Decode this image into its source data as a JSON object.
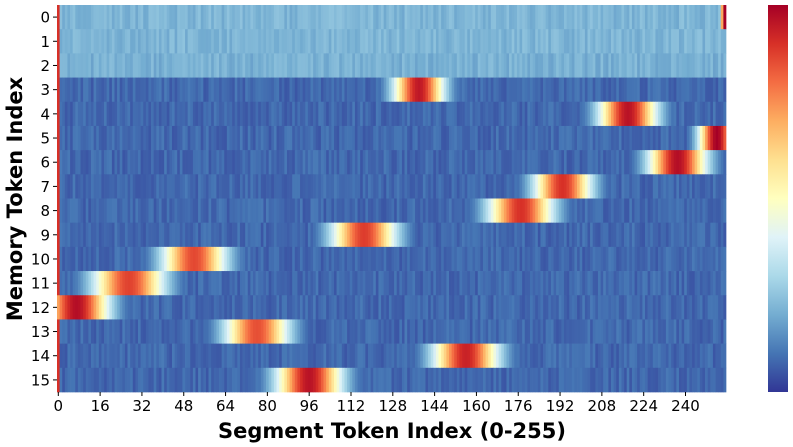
{
  "chart_data": {
    "type": "heatmap",
    "title": "",
    "xlabel": "Segment Token Index (0-255)",
    "ylabel": "Memory Token Index",
    "x_ticks": [
      "0",
      "16",
      "32",
      "48",
      "64",
      "80",
      "96",
      "112",
      "128",
      "144",
      "160",
      "176",
      "192",
      "208",
      "224",
      "240"
    ],
    "y_ticks": [
      "0",
      "1",
      "2",
      "3",
      "4",
      "5",
      "6",
      "7",
      "8",
      "9",
      "10",
      "11",
      "12",
      "13",
      "14",
      "15"
    ],
    "n_columns": 256,
    "colormap": "RdYlBu_r",
    "colorbar": true,
    "colorbar_tick_labels": false,
    "colors": {
      "low": "#313695",
      "mid": "#ffffbf",
      "high": "#a50026"
    },
    "rows": [
      {
        "row": 0,
        "background": 0.22,
        "peak_center": 255,
        "peak_width": 1.2,
        "peak_value": 1.0
      },
      {
        "row": 1,
        "background": 0.22,
        "peak_center": null,
        "peak_width": 0,
        "peak_value": 0
      },
      {
        "row": 2,
        "background": 0.21,
        "peak_center": null,
        "peak_width": 0,
        "peak_value": 0
      },
      {
        "row": 3,
        "background": 0.08,
        "peak_center": 138,
        "peak_width": 7,
        "peak_value": 0.95
      },
      {
        "row": 4,
        "background": 0.08,
        "peak_center": 218,
        "peak_width": 8,
        "peak_value": 0.96
      },
      {
        "row": 5,
        "background": 0.08,
        "peak_center": 252,
        "peak_width": 5,
        "peak_value": 1.0
      },
      {
        "row": 6,
        "background": 0.08,
        "peak_center": 237,
        "peak_width": 8,
        "peak_value": 0.97
      },
      {
        "row": 7,
        "background": 0.08,
        "peak_center": 193,
        "peak_width": 8,
        "peak_value": 0.9
      },
      {
        "row": 8,
        "background": 0.08,
        "peak_center": 177,
        "peak_width": 9,
        "peak_value": 0.9
      },
      {
        "row": 9,
        "background": 0.08,
        "peak_center": 117,
        "peak_width": 9,
        "peak_value": 0.88
      },
      {
        "row": 10,
        "background": 0.08,
        "peak_center": 52,
        "peak_width": 9,
        "peak_value": 0.86
      },
      {
        "row": 11,
        "background": 0.08,
        "peak_center": 27,
        "peak_width": 10,
        "peak_value": 0.87
      },
      {
        "row": 12,
        "background": 0.08,
        "peak_center": 7,
        "peak_width": 9,
        "peak_value": 0.97
      },
      {
        "row": 13,
        "background": 0.08,
        "peak_center": 76,
        "peak_width": 9,
        "peak_value": 0.85
      },
      {
        "row": 14,
        "background": 0.08,
        "peak_center": 156,
        "peak_width": 9,
        "peak_value": 0.93
      },
      {
        "row": 15,
        "background": 0.08,
        "peak_center": 96,
        "peak_width": 9,
        "peak_value": 0.96
      }
    ]
  }
}
